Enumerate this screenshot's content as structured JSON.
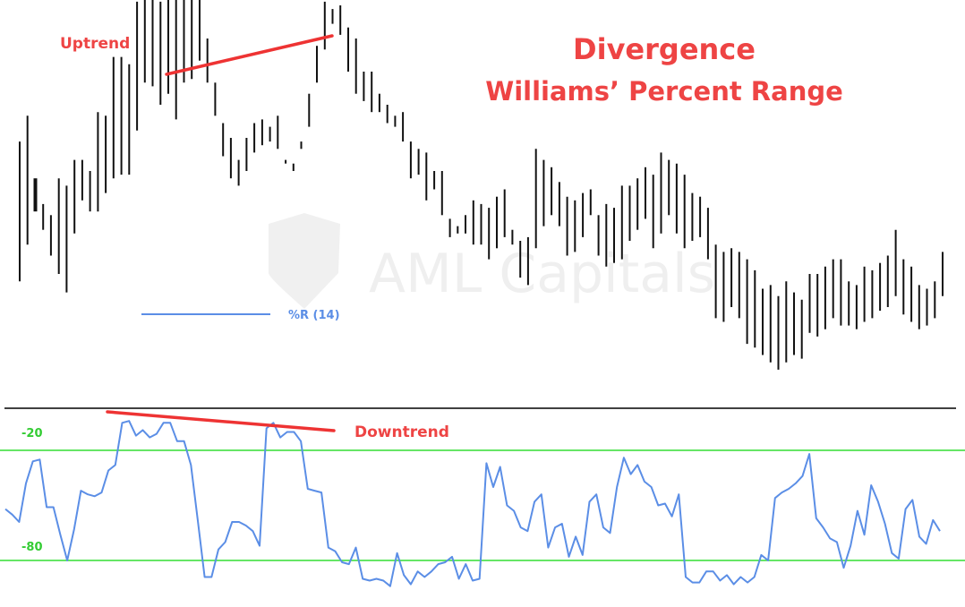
{
  "colors": {
    "price": "#111111",
    "indicator": "#5b8ee6",
    "levels": "#33dd33",
    "trendline": "#ee3333",
    "divider": "#000000",
    "title": "#ee4444"
  },
  "chart_data": {
    "type": "bar",
    "title": "Divergence",
    "subtitle": "Williams’ Percent Range",
    "watermark": "AML Capitals",
    "annotations": {
      "upper": "Uptrend",
      "lower": "Downtrend"
    },
    "legend": {
      "label": "%R (14)",
      "placement": "left-middle"
    },
    "price_panel": {
      "description_type": "ohlc-bars",
      "ylim": [
        0,
        100
      ],
      "bars": [
        [
          72,
          34
        ],
        [
          79,
          44
        ],
        [
          62,
          53
        ],
        [
          55,
          48
        ],
        [
          52,
          41
        ],
        [
          62,
          36
        ],
        [
          60,
          31
        ],
        [
          67,
          47
        ],
        [
          67,
          56
        ],
        [
          64,
          53
        ],
        [
          80,
          53
        ],
        [
          79,
          58
        ],
        [
          95,
          62
        ],
        [
          95,
          63
        ],
        [
          93,
          63
        ],
        [
          110,
          75
        ],
        [
          113,
          88
        ],
        [
          111,
          87
        ],
        [
          110,
          82
        ],
        [
          118,
          85
        ],
        [
          114,
          78
        ],
        [
          126,
          88
        ],
        [
          116,
          89
        ],
        [
          112,
          94
        ],
        [
          100,
          88
        ],
        [
          88,
          79
        ],
        [
          77,
          68
        ],
        [
          73,
          62
        ],
        [
          67,
          60
        ],
        [
          73,
          64
        ],
        [
          77,
          69
        ],
        [
          78,
          71
        ],
        [
          76,
          72
        ],
        [
          79,
          70
        ],
        [
          67,
          66
        ],
        [
          66,
          64
        ],
        [
          72,
          70
        ],
        [
          85,
          76
        ],
        [
          98,
          88
        ],
        [
          110,
          97
        ],
        [
          108,
          104
        ],
        [
          109,
          101
        ],
        [
          103,
          91
        ],
        [
          100,
          85
        ],
        [
          91,
          83
        ],
        [
          91,
          80
        ],
        [
          85,
          80
        ],
        [
          82,
          77
        ],
        [
          79,
          76
        ],
        [
          80,
          72
        ],
        [
          72,
          62
        ],
        [
          70,
          63
        ],
        [
          69,
          56
        ],
        [
          64,
          59
        ],
        [
          64,
          52
        ],
        [
          51,
          46
        ],
        [
          49,
          47
        ],
        [
          52,
          47
        ],
        [
          56,
          44
        ],
        [
          55,
          44
        ],
        [
          54,
          40
        ],
        [
          57,
          43
        ],
        [
          59,
          46
        ],
        [
          48,
          44
        ],
        [
          45,
          35
        ],
        [
          46,
          33
        ],
        [
          70,
          43
        ],
        [
          67,
          49
        ],
        [
          65,
          52
        ],
        [
          61,
          49
        ],
        [
          57,
          41
        ],
        [
          56,
          42
        ],
        [
          58,
          46
        ],
        [
          59,
          52
        ],
        [
          52,
          41
        ],
        [
          55,
          38
        ],
        [
          54,
          39
        ],
        [
          60,
          40
        ],
        [
          60,
          45
        ],
        [
          62,
          48
        ],
        [
          65,
          51
        ],
        [
          63,
          43
        ],
        [
          69,
          47
        ],
        [
          67,
          52
        ],
        [
          66,
          47
        ],
        [
          63,
          43
        ],
        [
          58,
          45
        ],
        [
          57,
          46
        ],
        [
          54,
          40
        ],
        [
          44,
          24
        ],
        [
          42,
          23
        ],
        [
          43,
          27
        ],
        [
          42,
          24
        ],
        [
          40,
          17
        ],
        [
          37,
          16
        ],
        [
          32,
          14
        ],
        [
          33,
          12
        ],
        [
          30,
          10
        ],
        [
          34,
          12
        ],
        [
          31,
          14
        ],
        [
          29,
          13
        ],
        [
          36,
          20
        ],
        [
          36,
          19
        ],
        [
          38,
          21
        ],
        [
          40,
          24
        ],
        [
          40,
          22
        ],
        [
          34,
          22
        ],
        [
          33,
          21
        ],
        [
          38,
          23
        ],
        [
          37,
          24
        ],
        [
          39,
          26
        ],
        [
          41,
          27
        ],
        [
          48,
          30
        ],
        [
          40,
          25
        ],
        [
          38,
          23
        ],
        [
          33,
          21
        ],
        [
          32,
          22
        ],
        [
          34,
          24
        ],
        [
          42,
          30
        ]
      ]
    },
    "indicator_panel": {
      "name": "%R (14)",
      "ylim": [
        -100,
        0
      ],
      "levels": [
        -20,
        -80
      ],
      "level_labels": [
        "-20",
        "-80"
      ],
      "values": [
        -52,
        -55,
        -59,
        -38,
        -26,
        -25,
        -51,
        -51,
        -66,
        -80,
        -63,
        -42,
        -44,
        -45,
        -43,
        -31,
        -28,
        -5,
        -4,
        -12,
        -9,
        -13,
        -11,
        -5,
        -5,
        -15,
        -15,
        -28,
        -58,
        -89,
        -89,
        -74,
        -70,
        -59,
        -59,
        -61,
        -64,
        -72,
        -8,
        -5,
        -13,
        -10,
        -10,
        -15,
        -41,
        -42,
        -43,
        -73,
        -75,
        -81,
        -82,
        -73,
        -90,
        -91,
        -90,
        -91,
        -94,
        -76,
        -88,
        -93,
        -86,
        -89,
        -86,
        -82,
        -81,
        -78,
        -90,
        -82,
        -91,
        -90,
        -27,
        -40,
        -29,
        -50,
        -53,
        -62,
        -64,
        -48,
        -44,
        -73,
        -62,
        -60,
        -78,
        -67,
        -77,
        -48,
        -44,
        -62,
        -65,
        -40,
        -24,
        -33,
        -28,
        -37,
        -40,
        -50,
        -49,
        -56,
        -44,
        -89,
        -92,
        -92,
        -86,
        -86,
        -91,
        -88,
        -93,
        -89,
        -92,
        -89,
        -77,
        -80,
        -46,
        -43,
        -41,
        -38,
        -34,
        -22,
        -57,
        -62,
        -68,
        -70,
        -84,
        -72,
        -53,
        -66,
        -39,
        -48,
        -60,
        -76,
        -79,
        -52,
        -47,
        -67,
        -71,
        -58,
        -64
      ]
    },
    "trendlines": [
      {
        "panel": "price",
        "label": "Uptrend"
      },
      {
        "panel": "indicator",
        "label": "Downtrend"
      }
    ]
  }
}
